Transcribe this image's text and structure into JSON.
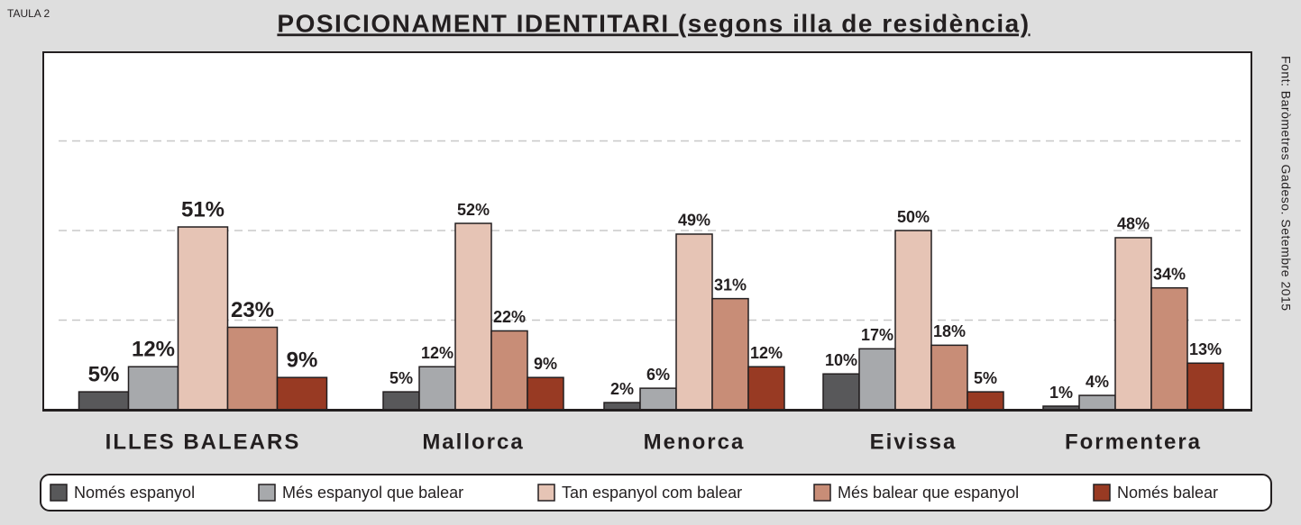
{
  "chart_data": {
    "type": "bar",
    "label": "TAULA 2",
    "title": "POSICIONAMENT IDENTITARI (segons illa de residència)",
    "source": "Font: Baròmetres Gadeso. Setembre 2015",
    "categories": [
      "ILLES BALEARS",
      "Mallorca",
      "Menorca",
      "Eivissa",
      "Formentera"
    ],
    "series": [
      {
        "name": "Només espanyol",
        "color": "#58585a",
        "values": [
          5,
          5,
          2,
          10,
          1
        ],
        "value_labels": [
          "5%",
          "5%",
          "2%",
          "10%",
          "1%"
        ]
      },
      {
        "name": "Més espanyol que balear",
        "color": "#a7a9ac",
        "values": [
          12,
          12,
          6,
          17,
          4
        ],
        "value_labels": [
          "12%",
          "12%",
          "6%",
          "17%",
          "4%"
        ]
      },
      {
        "name": "Tan espanyol com balear",
        "color": "#e6c4b5",
        "values": [
          51,
          52,
          49,
          50,
          48
        ],
        "value_labels": [
          "51%",
          "52%",
          "49%",
          "50%",
          "48%"
        ]
      },
      {
        "name": "Més balear que espanyol",
        "color": "#c88d77",
        "values": [
          23,
          22,
          31,
          18,
          34
        ],
        "value_labels": [
          "23%",
          "22%",
          "31%",
          "18%",
          "34%"
        ]
      },
      {
        "name": "Només balear",
        "color": "#983a23",
        "values": [
          9,
          9,
          12,
          5,
          13
        ],
        "value_labels": [
          "9%",
          "9%",
          "12%",
          "5%",
          "13%"
        ]
      }
    ],
    "ylim": [
      0,
      100
    ],
    "grid_lines": [
      25,
      50,
      75
    ],
    "grid": true,
    "legend": "bottom"
  }
}
